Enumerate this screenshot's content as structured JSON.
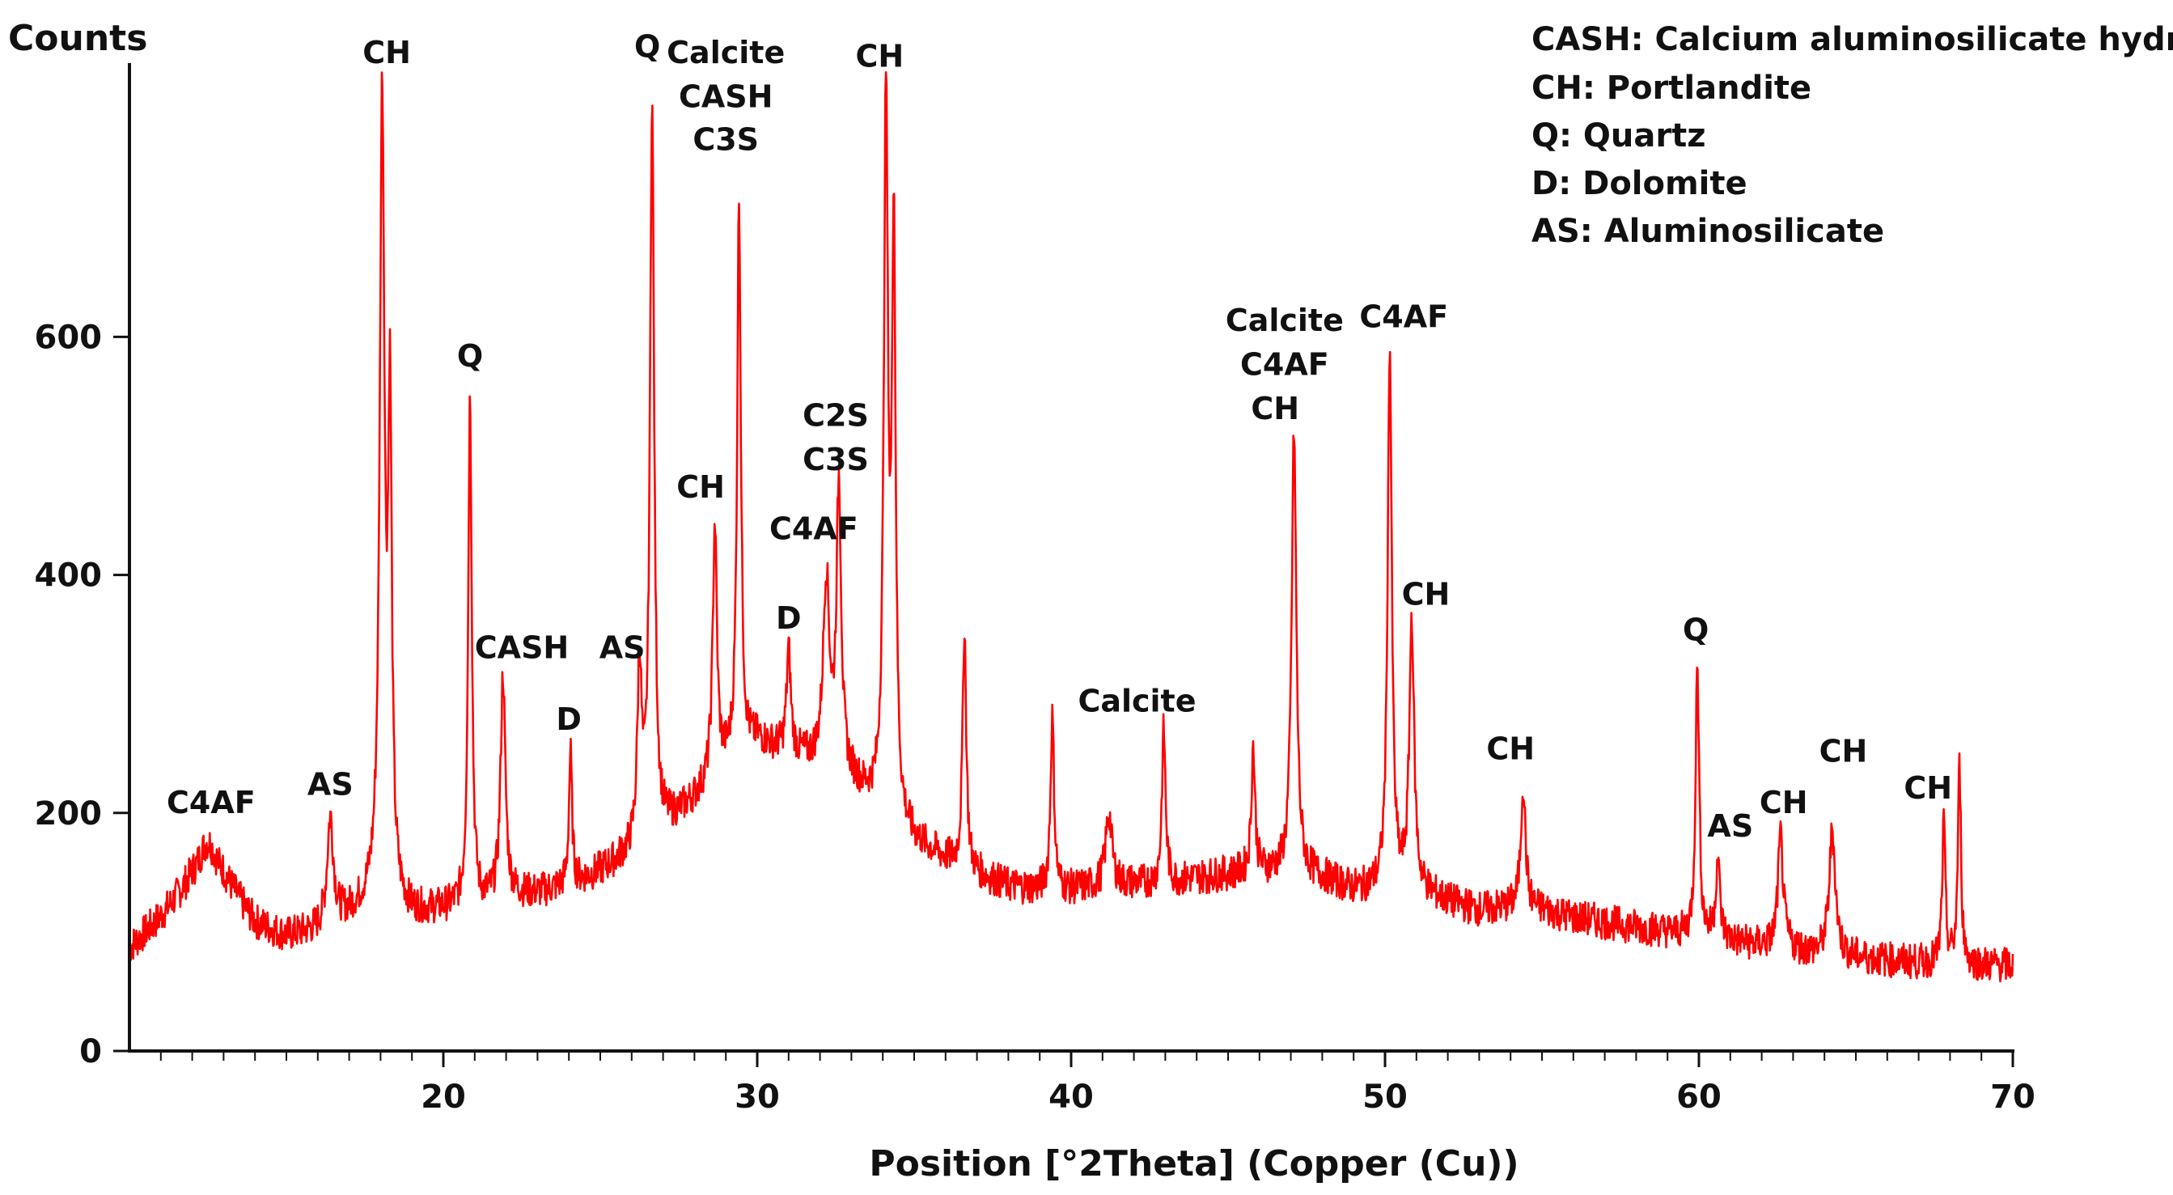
{
  "chart_data": {
    "type": "line",
    "ylabel": "Counts",
    "xlabel": "Position [°2Theta] (Copper (Cu))",
    "xlim": [
      10.0,
      70.0
    ],
    "ylim": [
      0,
      830
    ],
    "x_ticks": [
      20,
      30,
      40,
      50,
      60,
      70
    ],
    "y_ticks": [
      0,
      200,
      400,
      600
    ],
    "grid": false,
    "legend_position": "top-right",
    "line_color": "#ff0000",
    "legend": [
      "CASH: Calcium aluminosilicate hydrate",
      "CH: Portlandite",
      "Q: Quartz",
      "D: Dolomite",
      "AS: Aluminosilicate"
    ],
    "baseline": [
      [
        10.0,
        85
      ],
      [
        11.0,
        110
      ],
      [
        12.0,
        140
      ],
      [
        13.0,
        140
      ],
      [
        14.0,
        105
      ],
      [
        15.0,
        95
      ],
      [
        16.0,
        100
      ],
      [
        17.0,
        115
      ],
      [
        18.0,
        130
      ],
      [
        19.0,
        115
      ],
      [
        20.0,
        118
      ],
      [
        21.0,
        120
      ],
      [
        22.0,
        130
      ],
      [
        23.0,
        132
      ],
      [
        24.0,
        138
      ],
      [
        25.0,
        150
      ],
      [
        26.0,
        165
      ],
      [
        27.0,
        185
      ],
      [
        28.0,
        210
      ],
      [
        29.0,
        240
      ],
      [
        30.0,
        260
      ],
      [
        31.0,
        250
      ],
      [
        32.0,
        240
      ],
      [
        33.0,
        225
      ],
      [
        34.0,
        200
      ],
      [
        35.0,
        175
      ],
      [
        36.0,
        160
      ],
      [
        37.0,
        148
      ],
      [
        38.0,
        138
      ],
      [
        39.0,
        135
      ],
      [
        40.0,
        135
      ],
      [
        41.0,
        138
      ],
      [
        42.0,
        140
      ],
      [
        43.0,
        140
      ],
      [
        44.0,
        145
      ],
      [
        45.0,
        148
      ],
      [
        46.0,
        150
      ],
      [
        47.0,
        150
      ],
      [
        48.0,
        145
      ],
      [
        49.0,
        135
      ],
      [
        50.0,
        135
      ],
      [
        51.0,
        135
      ],
      [
        52.0,
        125
      ],
      [
        53.0,
        118
      ],
      [
        54.0,
        120
      ],
      [
        55.0,
        118
      ],
      [
        56.0,
        112
      ],
      [
        57.0,
        108
      ],
      [
        58.0,
        104
      ],
      [
        59.0,
        100
      ],
      [
        60.0,
        95
      ],
      [
        61.0,
        92
      ],
      [
        62.0,
        88
      ],
      [
        63.0,
        85
      ],
      [
        64.0,
        80
      ],
      [
        65.0,
        78
      ],
      [
        66.0,
        76
      ],
      [
        67.0,
        74
      ],
      [
        68.0,
        74
      ],
      [
        69.0,
        72
      ],
      [
        70.0,
        72
      ]
    ],
    "peaks": [
      {
        "x": 12.5,
        "y": 175,
        "w": 0.35
      },
      {
        "x": 16.4,
        "y": 195,
        "w": 0.12
      },
      {
        "x": 18.05,
        "y": 795,
        "w": 0.09
      },
      {
        "x": 18.3,
        "y": 520,
        "w": 0.07
      },
      {
        "x": 20.85,
        "y": 550,
        "w": 0.07
      },
      {
        "x": 21.9,
        "y": 315,
        "w": 0.09
      },
      {
        "x": 24.05,
        "y": 250,
        "w": 0.06
      },
      {
        "x": 26.25,
        "y": 320,
        "w": 0.08
      },
      {
        "x": 26.65,
        "y": 795,
        "w": 0.08
      },
      {
        "x": 28.65,
        "y": 440,
        "w": 0.08
      },
      {
        "x": 29.42,
        "y": 715,
        "w": 0.07
      },
      {
        "x": 31.0,
        "y": 335,
        "w": 0.08
      },
      {
        "x": 32.2,
        "y": 395,
        "w": 0.12
      },
      {
        "x": 32.6,
        "y": 470,
        "w": 0.09
      },
      {
        "x": 34.1,
        "y": 790,
        "w": 0.08
      },
      {
        "x": 34.35,
        "y": 680,
        "w": 0.07
      },
      {
        "x": 36.6,
        "y": 355,
        "w": 0.07
      },
      {
        "x": 39.4,
        "y": 280,
        "w": 0.07
      },
      {
        "x": 41.2,
        "y": 200,
        "w": 0.12
      },
      {
        "x": 42.95,
        "y": 270,
        "w": 0.07
      },
      {
        "x": 45.8,
        "y": 255,
        "w": 0.07
      },
      {
        "x": 47.1,
        "y": 520,
        "w": 0.09
      },
      {
        "x": 50.15,
        "y": 590,
        "w": 0.08
      },
      {
        "x": 50.85,
        "y": 360,
        "w": 0.09
      },
      {
        "x": 54.4,
        "y": 225,
        "w": 0.09
      },
      {
        "x": 59.95,
        "y": 325,
        "w": 0.07
      },
      {
        "x": 60.6,
        "y": 160,
        "w": 0.08
      },
      {
        "x": 62.6,
        "y": 180,
        "w": 0.1
      },
      {
        "x": 64.25,
        "y": 185,
        "w": 0.12
      },
      {
        "x": 67.8,
        "y": 190,
        "w": 0.06
      },
      {
        "x": 68.3,
        "y": 238,
        "w": 0.06
      }
    ],
    "annotations": [
      {
        "text": "C4AF",
        "x": 12.6,
        "y": 200
      },
      {
        "text": "AS",
        "x": 16.4,
        "y": 215
      },
      {
        "text": "CH",
        "x": 18.2,
        "y": 830
      },
      {
        "text": "Q",
        "x": 20.85,
        "y": 575
      },
      {
        "text": "CASH",
        "x": 22.5,
        "y": 330
      },
      {
        "text": "D",
        "x": 24.0,
        "y": 270
      },
      {
        "text": "AS",
        "x": 25.7,
        "y": 330
      },
      {
        "text": "Q",
        "x": 26.5,
        "y": 835
      },
      {
        "text": "Calcite",
        "x": 29.0,
        "y": 830
      },
      {
        "text": "CASH",
        "x": 29.0,
        "y": 793
      },
      {
        "text": "C3S",
        "x": 29.0,
        "y": 757
      },
      {
        "text": "CH",
        "x": 28.2,
        "y": 465
      },
      {
        "text": "D",
        "x": 31.0,
        "y": 355
      },
      {
        "text": "C4AF",
        "x": 31.8,
        "y": 430
      },
      {
        "text": "C2S",
        "x": 32.5,
        "y": 525
      },
      {
        "text": "C3S",
        "x": 32.5,
        "y": 488
      },
      {
        "text": "CH",
        "x": 33.9,
        "y": 827
      },
      {
        "text": "Calcite",
        "x": 42.1,
        "y": 285
      },
      {
        "text": "Calcite",
        "x": 46.8,
        "y": 605
      },
      {
        "text": "C4AF",
        "x": 46.8,
        "y": 568
      },
      {
        "text": "CH",
        "x": 46.5,
        "y": 531
      },
      {
        "text": "C4AF",
        "x": 50.6,
        "y": 608
      },
      {
        "text": "CH",
        "x": 51.3,
        "y": 375
      },
      {
        "text": "CH",
        "x": 54.0,
        "y": 245
      },
      {
        "text": "Q",
        "x": 59.9,
        "y": 345
      },
      {
        "text": "AS",
        "x": 61.0,
        "y": 180
      },
      {
        "text": "CH",
        "x": 62.7,
        "y": 200
      },
      {
        "text": "CH",
        "x": 64.6,
        "y": 243
      },
      {
        "text": "CH",
        "x": 67.3,
        "y": 212
      }
    ]
  }
}
